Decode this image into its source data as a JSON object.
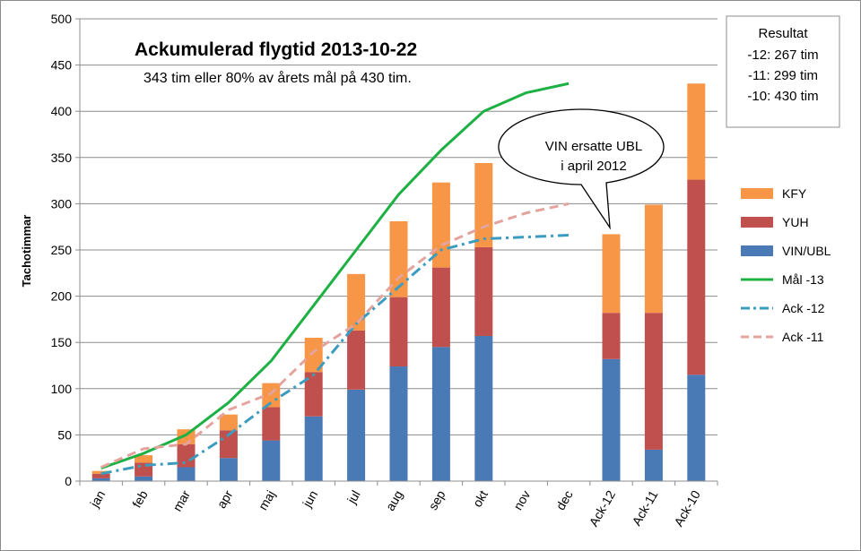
{
  "chart_data": {
    "type": "bar",
    "title": "Ackumulerad flygtid 2013-10-22",
    "subtitle": "343 tim eller 80% av årets mål på 430 tim.",
    "ylabel": "Tachotimmar",
    "xlabel": "",
    "ylim": [
      0,
      500
    ],
    "yticks": [
      0,
      50,
      100,
      150,
      200,
      250,
      300,
      350,
      400,
      450,
      500
    ],
    "grid": true,
    "legend_position": "right",
    "categories": [
      "jan",
      "feb",
      "mar",
      "apr",
      "maj",
      "jun",
      "jul",
      "aug",
      "sep",
      "okt",
      "nov",
      "dec",
      "Ack-12",
      "Ack-11",
      "Ack-10"
    ],
    "bar_series": [
      {
        "name": "VIN/UBL",
        "color": "#4a7ab5",
        "values": [
          3,
          5,
          15,
          25,
          44,
          70,
          99,
          124,
          145,
          157,
          null,
          null,
          132,
          34,
          115
        ]
      },
      {
        "name": "YUH",
        "color": "#c0504d",
        "values": [
          5,
          15,
          25,
          30,
          36,
          48,
          64,
          75,
          86,
          96,
          null,
          null,
          50,
          148,
          211
        ]
      },
      {
        "name": "KFY",
        "color": "#f79646",
        "values": [
          3,
          8,
          16,
          17,
          26,
          37,
          61,
          82,
          92,
          91,
          null,
          null,
          85,
          117,
          104
        ]
      }
    ],
    "line_series": [
      {
        "name": "Mål -13",
        "color": "#1db043",
        "style": "solid",
        "values": [
          14,
          30,
          50,
          85,
          130,
          190,
          250,
          310,
          358,
          400,
          420,
          430
        ]
      },
      {
        "name": "Ack -12",
        "color": "#3c9cbf",
        "style": "dashdot",
        "values": [
          8,
          17,
          20,
          50,
          85,
          115,
          170,
          210,
          250,
          262,
          264,
          266
        ]
      },
      {
        "name": "Ack -11",
        "color": "#e4a49d",
        "style": "dashed",
        "values": [
          15,
          35,
          40,
          77,
          95,
          140,
          170,
          220,
          255,
          275,
          290,
          300
        ]
      }
    ],
    "legend": [
      "KFY",
      "YUH",
      "VIN/UBL",
      "Mål -13",
      "Ack -12",
      "Ack -11"
    ],
    "callout": {
      "lines": [
        "VIN ersatte UBL",
        "i april 2012"
      ]
    },
    "result_box": {
      "lines": [
        "Resultat",
        "-12: 267 tim",
        "-11: 299 tim",
        "-10: 430 tim"
      ]
    }
  }
}
